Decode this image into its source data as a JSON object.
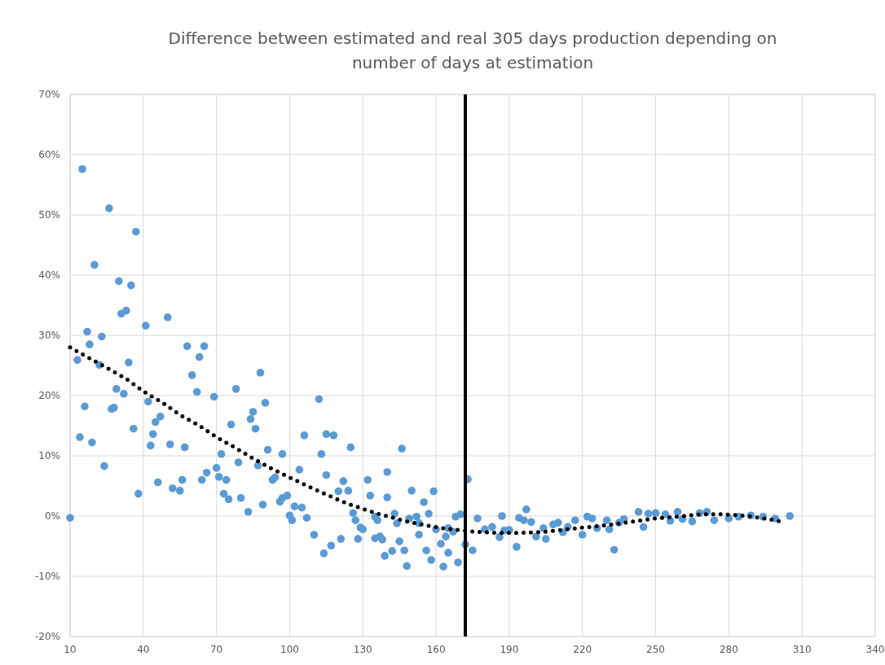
{
  "chart_data": {
    "type": "scatter",
    "title": "Difference between estimated and real 305 days production depending on number of days at estimation",
    "xlim": [
      10,
      340
    ],
    "xticks": [
      10,
      40,
      70,
      100,
      130,
      160,
      190,
      220,
      250,
      280,
      310,
      340
    ],
    "ylim": [
      -20,
      70
    ],
    "yticks": [
      {
        "value": -20,
        "label": "-20%"
      },
      {
        "value": -10,
        "label": "-10%"
      },
      {
        "value": 0,
        "label": "0%"
      },
      {
        "value": 10,
        "label": "10%"
      },
      {
        "value": 20,
        "label": "20%"
      },
      {
        "value": 30,
        "label": "30%"
      },
      {
        "value": 40,
        "label": "40%"
      },
      {
        "value": 50,
        "label": "50%"
      },
      {
        "value": 60,
        "label": "60%"
      },
      {
        "value": 70,
        "label": "70%"
      }
    ],
    "grid": true,
    "marker": "circle",
    "ref_lines": [
      {
        "axis": "x",
        "value": 172,
        "color": "#000000"
      }
    ],
    "series": [
      {
        "color": "#5b9bd5",
        "x": [
          10,
          15,
          26,
          37,
          20,
          30,
          35,
          31,
          33,
          50,
          41,
          17,
          23,
          18,
          58,
          65,
          63,
          13,
          22,
          34,
          88,
          60,
          29,
          32,
          78,
          62,
          42,
          69,
          16,
          27,
          28,
          85,
          90,
          47,
          45,
          84,
          76,
          86,
          36,
          44,
          14,
          19,
          43,
          51,
          57,
          106,
          72,
          97,
          91,
          24,
          70,
          79,
          87,
          104,
          66,
          64,
          71,
          74,
          93,
          94,
          56,
          46,
          52,
          55,
          38,
          73,
          75,
          80,
          89,
          83,
          96,
          97,
          99,
          102,
          105,
          100,
          101,
          107,
          112,
          115,
          118,
          113,
          125,
          115,
          122,
          120,
          124,
          110,
          117,
          114,
          121,
          126,
          127,
          129,
          130,
          128,
          132,
          133,
          135,
          136,
          135,
          137,
          138,
          140,
          140,
          139,
          142,
          143,
          144,
          145,
          146,
          147,
          148,
          149,
          150,
          152,
          153,
          153,
          155,
          157,
          156,
          158,
          159,
          160,
          162,
          163,
          164,
          165,
          165,
          167,
          168,
          169,
          170,
          172,
          173,
          175,
          177,
          180,
          183,
          186,
          187,
          188,
          190,
          193,
          194,
          197,
          196,
          199,
          201,
          204,
          205,
          208,
          210,
          212,
          214,
          217,
          220,
          222,
          224,
          226,
          230,
          231,
          233,
          235,
          237,
          243,
          245,
          247,
          250,
          254,
          256,
          259,
          261,
          265,
          268,
          271,
          274,
          280,
          284,
          289,
          294,
          299,
          305
        ],
        "values": [
          -0.3,
          57.6,
          51.1,
          47.2,
          41.7,
          39.0,
          38.3,
          33.6,
          34.1,
          33.0,
          31.6,
          30.6,
          29.8,
          28.5,
          28.2,
          28.2,
          26.4,
          25.9,
          25.1,
          25.5,
          23.8,
          23.4,
          21.1,
          20.3,
          21.1,
          20.6,
          19.0,
          19.8,
          18.2,
          17.8,
          18.0,
          17.3,
          18.8,
          16.5,
          15.6,
          16.1,
          15.2,
          14.5,
          14.5,
          13.6,
          13.1,
          12.2,
          11.7,
          11.9,
          11.4,
          13.4,
          10.3,
          10.3,
          11.0,
          8.3,
          8.0,
          8.9,
          8.4,
          7.7,
          7.2,
          6.0,
          6.5,
          6.0,
          6.0,
          6.4,
          6.0,
          5.6,
          4.6,
          4.2,
          3.7,
          3.7,
          2.8,
          3.0,
          1.9,
          0.7,
          2.4,
          3.0,
          3.4,
          1.6,
          1.4,
          0.1,
          -0.7,
          -0.3,
          19.4,
          13.6,
          13.4,
          10.3,
          11.4,
          6.8,
          5.8,
          4.1,
          4.2,
          -3.1,
          -4.9,
          -6.2,
          -3.8,
          0.5,
          -0.7,
          -1.9,
          -2.2,
          -3.8,
          6.0,
          3.4,
          -0.1,
          -0.7,
          -3.7,
          -3.4,
          -3.9,
          7.3,
          3.1,
          -6.6,
          -5.8,
          0.4,
          -1.2,
          -4.2,
          11.2,
          -5.7,
          -8.3,
          -0.4,
          4.2,
          -0.1,
          -1.2,
          -3.1,
          2.3,
          0.4,
          -5.7,
          -7.3,
          4.1,
          -2.2,
          -4.6,
          -8.4,
          -3.4,
          -2.0,
          -6.1,
          -2.6,
          -0.1,
          -7.7,
          0.3,
          -4.7,
          6.1,
          -5.7,
          -0.4,
          -2.2,
          -1.8,
          -3.5,
          0.0,
          -2.4,
          -2.3,
          -5.1,
          -0.3,
          1.1,
          -0.7,
          -1.0,
          -3.4,
          -2.0,
          -3.8,
          -1.4,
          -1.1,
          -2.7,
          -1.8,
          -0.7,
          -3.1,
          -0.1,
          -0.4,
          -2.0,
          -0.7,
          -2.2,
          -5.6,
          -1.1,
          -0.5,
          0.7,
          -1.8,
          0.4,
          0.5,
          0.3,
          -0.8,
          0.7,
          -0.5,
          -0.9,
          0.5,
          0.7,
          -0.7,
          -0.4,
          -0.1,
          0.1,
          -0.1,
          -0.4,
          0.0
        ]
      },
      {
        "type": "line",
        "color": "#000000",
        "line_style": "dotted",
        "marker": "none",
        "x": [
          10,
          22,
          33,
          40,
          48,
          55,
          63,
          70,
          77,
          84,
          92,
          100,
          112,
          124,
          136,
          149,
          162,
          176,
          185,
          195,
          205,
          214,
          223,
          232,
          241,
          250,
          259,
          269,
          278,
          288,
          296,
          301
        ],
        "values": [
          28.0,
          25.3,
          22.8,
          20.7,
          18.8,
          16.8,
          15.0,
          13.1,
          11.5,
          9.8,
          8.0,
          6.4,
          4.1,
          2.0,
          0.4,
          -1.0,
          -2.0,
          -2.6,
          -2.8,
          -2.8,
          -2.6,
          -2.2,
          -1.8,
          -1.4,
          -0.9,
          -0.4,
          -0.1,
          0.3,
          0.3,
          0.0,
          -0.5,
          -0.9
        ]
      }
    ]
  }
}
